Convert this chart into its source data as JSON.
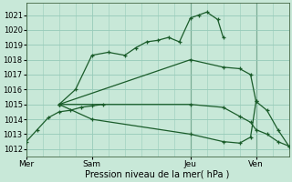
{
  "bg_color": "#c8e8d8",
  "grid_color": "#99ccbb",
  "line_color": "#1a5c2a",
  "xlabel": "Pression niveau de la mer( hPa )",
  "ylim": [
    1011.5,
    1021.8
  ],
  "yticks": [
    1012,
    1013,
    1014,
    1015,
    1016,
    1017,
    1018,
    1019,
    1020,
    1021
  ],
  "xlim": [
    0,
    96
  ],
  "day_ticks": [
    0,
    24,
    60,
    84
  ],
  "day_labels": [
    "Mer",
    "Sam",
    "Jeu",
    "Ven"
  ],
  "vlines": [
    0,
    60,
    84
  ],
  "series": [
    {
      "x": [
        0,
        4,
        8,
        12,
        16,
        20,
        24,
        28
      ],
      "y": [
        1012.5,
        1013.3,
        1014.1,
        1014.5,
        1014.6,
        1014.8,
        1014.9,
        1015.0
      ],
      "marker": "+"
    },
    {
      "x": [
        12,
        18,
        24,
        30,
        36,
        40,
        44,
        48,
        52,
        56,
        60,
        63,
        66,
        70,
        72
      ],
      "y": [
        1015.0,
        1016.0,
        1018.3,
        1018.5,
        1018.3,
        1018.8,
        1019.2,
        1019.3,
        1019.5,
        1019.2,
        1020.8,
        1021.0,
        1021.2,
        1020.7,
        1019.5
      ],
      "marker": "+"
    },
    {
      "x": [
        12,
        60,
        72,
        78,
        82,
        84
      ],
      "y": [
        1015.0,
        1018.0,
        1017.5,
        1017.4,
        1017.0,
        1015.2
      ],
      "marker": "+"
    },
    {
      "x": [
        12,
        60,
        72,
        78,
        82,
        84,
        88,
        92,
        96
      ],
      "y": [
        1015.0,
        1015.0,
        1014.8,
        1014.2,
        1013.8,
        1013.3,
        1013.0,
        1012.5,
        1012.2
      ],
      "marker": "+"
    },
    {
      "x": [
        12,
        24,
        60,
        72,
        78,
        82,
        84,
        88,
        92,
        96
      ],
      "y": [
        1015.0,
        1014.0,
        1013.0,
        1012.5,
        1012.4,
        1012.8,
        1015.2,
        1014.6,
        1013.3,
        1012.2
      ],
      "marker": "+"
    }
  ]
}
